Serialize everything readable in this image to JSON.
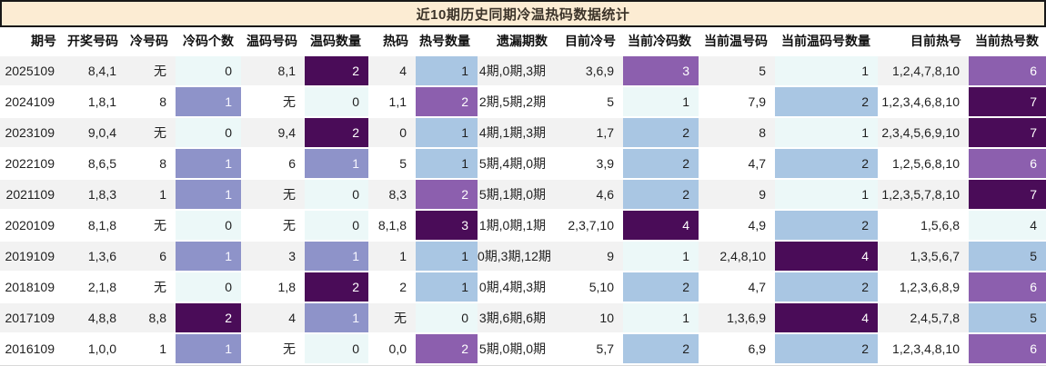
{
  "title": "近10期历史同期冷温热码数据统计",
  "colors": {
    "title_bg": "#fcecd3",
    "title_border": "#181818",
    "stripe": "#f2f2f2",
    "heat_c0": "#ecf8f8",
    "heat_c1": "#a9c6e3",
    "heat_c2": "#8e93c9",
    "heat_c3": "#8c5fae",
    "heat_c4": "#4a0c58"
  },
  "table": {
    "columns": [
      {
        "key": "period",
        "label": "期号"
      },
      {
        "key": "winning-numbers",
        "label": "开奖号码"
      },
      {
        "key": "cold-numbers",
        "label": "冷号码"
      },
      {
        "key": "cold-count",
        "label": "冷码个数"
      },
      {
        "key": "warm-numbers",
        "label": "温码号码"
      },
      {
        "key": "warm-count",
        "label": "温码数量"
      },
      {
        "key": "hot-numbers",
        "label": "热码"
      },
      {
        "key": "hot-count",
        "label": "热号数量"
      },
      {
        "key": "missing-periods",
        "label": "遗漏期数"
      },
      {
        "key": "current-cold-numbers",
        "label": "目前冷号"
      },
      {
        "key": "current-cold-count",
        "label": "当前冷码数"
      },
      {
        "key": "current-warm-numbers",
        "label": "当前温号码"
      },
      {
        "key": "current-warm-count",
        "label": "当前温码号数量"
      },
      {
        "key": "current-hot-numbers",
        "label": "目前热号"
      },
      {
        "key": "current-hot-count",
        "label": "当前热号数"
      }
    ],
    "rows": [
      {
        "values": [
          "2025109",
          "8,4,1",
          "无",
          "0",
          "8,1",
          "2",
          "4",
          "1",
          "4期,0期,3期",
          "3,6,9",
          "3",
          "5",
          "1",
          "1,2,4,7,8,10",
          "6"
        ],
        "heat": {
          "3": "c0",
          "5": "c4",
          "7": "c1",
          "10": "c3",
          "12": "c0",
          "14": "c3"
        }
      },
      {
        "values": [
          "2024109",
          "1,8,1",
          "8",
          "1",
          "无",
          "0",
          "1,1",
          "2",
          "2期,5期,2期",
          "5",
          "1",
          "7,9",
          "2",
          "1,2,3,4,6,8,10",
          "7"
        ],
        "heat": {
          "3": "c2",
          "5": "c0",
          "7": "c3",
          "10": "c0",
          "12": "c1",
          "14": "c4"
        }
      },
      {
        "values": [
          "2023109",
          "9,0,4",
          "无",
          "0",
          "9,4",
          "2",
          "0",
          "1",
          "4期,1期,3期",
          "1,7",
          "2",
          "8",
          "1",
          "2,3,4,5,6,9,10",
          "7"
        ],
        "heat": {
          "3": "c0",
          "5": "c4",
          "7": "c1",
          "10": "c1",
          "12": "c0",
          "14": "c4"
        }
      },
      {
        "values": [
          "2022109",
          "8,6,5",
          "8",
          "1",
          "6",
          "1",
          "5",
          "1",
          "5期,4期,0期",
          "3,9",
          "2",
          "4,7",
          "2",
          "1,2,5,6,8,10",
          "6"
        ],
        "heat": {
          "3": "c2",
          "5": "c2",
          "7": "c1",
          "10": "c1",
          "12": "c1",
          "14": "c3"
        }
      },
      {
        "values": [
          "2021109",
          "1,8,3",
          "1",
          "1",
          "无",
          "0",
          "8,3",
          "2",
          "5期,1期,0期",
          "4,6",
          "2",
          "9",
          "1",
          "1,2,3,5,7,8,10",
          "7"
        ],
        "heat": {
          "3": "c2",
          "5": "c0",
          "7": "c3",
          "10": "c1",
          "12": "c0",
          "14": "c4"
        }
      },
      {
        "values": [
          "2020109",
          "8,1,8",
          "无",
          "0",
          "无",
          "0",
          "8,1,8",
          "3",
          "1期,0期,1期",
          "2,3,7,10",
          "4",
          "4,9",
          "2",
          "1,5,6,8",
          "4"
        ],
        "heat": {
          "3": "c0",
          "5": "c0",
          "7": "c4",
          "10": "c4",
          "12": "c1",
          "14": "c0"
        }
      },
      {
        "values": [
          "2019109",
          "1,3,6",
          "6",
          "1",
          "3",
          "1",
          "1",
          "1",
          "0期,3期,12期",
          "9",
          "1",
          "2,4,8,10",
          "4",
          "1,3,5,6,7",
          "5"
        ],
        "heat": {
          "3": "c2",
          "5": "c2",
          "7": "c1",
          "10": "c0",
          "12": "c4",
          "14": "c1"
        }
      },
      {
        "values": [
          "2018109",
          "2,1,8",
          "无",
          "0",
          "1,8",
          "2",
          "2",
          "1",
          "0期,4期,3期",
          "5,10",
          "2",
          "4,7",
          "2",
          "1,2,3,6,8,9",
          "6"
        ],
        "heat": {
          "3": "c0",
          "5": "c4",
          "7": "c1",
          "10": "c1",
          "12": "c1",
          "14": "c3"
        }
      },
      {
        "values": [
          "2017109",
          "4,8,8",
          "8,8",
          "2",
          "4",
          "1",
          "无",
          "0",
          "3期,6期,6期",
          "10",
          "1",
          "1,3,6,9",
          "4",
          "2,4,5,7,8",
          "5"
        ],
        "heat": {
          "3": "c4",
          "5": "c2",
          "7": "c0",
          "10": "c0",
          "12": "c4",
          "14": "c1"
        }
      },
      {
        "values": [
          "2016109",
          "1,0,0",
          "1",
          "1",
          "无",
          "0",
          "0,0",
          "2",
          "5期,0期,0期",
          "5,7",
          "2",
          "6,9",
          "2",
          "1,2,3,4,8,10",
          "6"
        ],
        "heat": {
          "3": "c2",
          "5": "c0",
          "7": "c3",
          "10": "c1",
          "12": "c1",
          "14": "c3"
        }
      }
    ]
  }
}
